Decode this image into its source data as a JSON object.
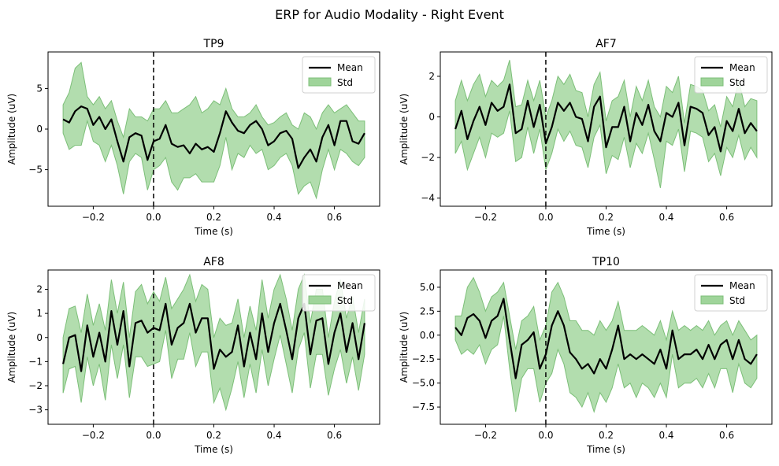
{
  "figure_title": "ERP for Audio Modality - Right Event",
  "colors": {
    "mean": "#000000",
    "std_fill": "#9fd49a",
    "std_edge": "#7cbf78",
    "event_line": "#000000"
  },
  "chart_data": [
    {
      "type": "line",
      "title": "TP9",
      "xlabel": "Time (s)",
      "ylabel": "Amplitude (uV)",
      "xlim": [
        -0.35,
        0.75
      ],
      "ylim": [
        -9.5,
        9.5
      ],
      "xticks": [
        -0.2,
        0.0,
        0.2,
        0.4,
        0.6
      ],
      "xtick_labels": [
        "−0.2",
        "0.0",
        "0.2",
        "0.4",
        "0.6"
      ],
      "yticks": [
        -5,
        0,
        5
      ],
      "ytick_labels": [
        "−5",
        "0",
        "5"
      ],
      "event_x": 0.0,
      "legend": {
        "position": "upper right",
        "entries": [
          "Mean",
          "Std"
        ]
      },
      "x": [
        -0.3,
        -0.28,
        -0.26,
        -0.24,
        -0.22,
        -0.2,
        -0.18,
        -0.16,
        -0.14,
        -0.12,
        -0.1,
        -0.08,
        -0.06,
        -0.04,
        -0.02,
        0.0,
        0.02,
        0.04,
        0.06,
        0.08,
        0.1,
        0.12,
        0.14,
        0.16,
        0.18,
        0.2,
        0.22,
        0.24,
        0.26,
        0.28,
        0.3,
        0.32,
        0.34,
        0.36,
        0.38,
        0.4,
        0.42,
        0.44,
        0.46,
        0.48,
        0.5,
        0.52,
        0.54,
        0.56,
        0.58,
        0.6,
        0.62,
        0.64,
        0.66,
        0.68,
        0.7
      ],
      "series": [
        {
          "name": "Mean",
          "values": [
            1.2,
            0.8,
            2.2,
            2.8,
            2.5,
            0.5,
            1.5,
            0.0,
            1.2,
            -1.5,
            -4.0,
            -1.0,
            -0.5,
            -0.8,
            -3.8,
            -1.5,
            -1.2,
            0.5,
            -1.8,
            -2.2,
            -2.0,
            -3.0,
            -1.8,
            -2.5,
            -2.2,
            -2.8,
            -0.5,
            2.2,
            0.8,
            -0.2,
            -0.5,
            0.5,
            1.0,
            0.0,
            -2.0,
            -1.5,
            -0.5,
            -0.2,
            -1.2,
            -4.8,
            -3.5,
            -2.5,
            -4.0,
            -1.0,
            0.5,
            -2.0,
            1.0,
            1.0,
            -1.5,
            -1.8,
            -0.5
          ]
        },
        {
          "name": "Std",
          "upper": [
            3.0,
            4.5,
            7.5,
            8.2,
            4.0,
            3.0,
            4.0,
            2.5,
            3.5,
            1.0,
            -1.0,
            2.5,
            1.5,
            1.5,
            1.0,
            2.5,
            2.5,
            3.5,
            2.0,
            2.0,
            2.5,
            3.0,
            4.0,
            2.0,
            2.5,
            3.5,
            3.0,
            5.0,
            2.5,
            1.5,
            1.5,
            2.0,
            3.0,
            1.5,
            0.5,
            0.8,
            1.5,
            2.0,
            0.5,
            0.0,
            2.0,
            1.5,
            0.0,
            2.0,
            3.0,
            2.0,
            2.5,
            3.0,
            2.0,
            1.0,
            1.0
          ],
          "lower": [
            -0.5,
            -2.5,
            -2.0,
            -2.0,
            1.0,
            -1.5,
            -2.0,
            -4.0,
            -2.0,
            -4.5,
            -8.0,
            -4.0,
            -3.0,
            -3.5,
            -7.5,
            -5.0,
            -4.5,
            -3.5,
            -6.5,
            -7.5,
            -6.0,
            -6.0,
            -5.5,
            -6.5,
            -6.5,
            -6.5,
            -4.5,
            -1.0,
            -5.0,
            -3.0,
            -3.5,
            -2.0,
            -3.0,
            -2.5,
            -5.0,
            -4.5,
            -3.5,
            -3.0,
            -4.5,
            -8.0,
            -7.0,
            -6.5,
            -8.5,
            -5.0,
            -2.5,
            -5.0,
            -2.5,
            -3.0,
            -4.0,
            -4.5,
            -3.5
          ]
        }
      ]
    },
    {
      "type": "line",
      "title": "AF7",
      "xlabel": "Time (s)",
      "ylabel": "Amplitude (uV)",
      "xlim": [
        -0.35,
        0.75
      ],
      "ylim": [
        -4.4,
        3.2
      ],
      "xticks": [
        -0.2,
        0.0,
        0.2,
        0.4,
        0.6
      ],
      "xtick_labels": [
        "−0.2",
        "0.0",
        "0.2",
        "0.4",
        "0.6"
      ],
      "yticks": [
        -4,
        -2,
        0,
        2
      ],
      "ytick_labels": [
        "−4",
        "−2",
        "0",
        "2"
      ],
      "event_x": 0.0,
      "legend": {
        "position": "upper right",
        "entries": [
          "Mean",
          "Std"
        ]
      },
      "x": [
        -0.3,
        -0.28,
        -0.26,
        -0.24,
        -0.22,
        -0.2,
        -0.18,
        -0.16,
        -0.14,
        -0.12,
        -0.1,
        -0.08,
        -0.06,
        -0.04,
        -0.02,
        0.0,
        0.02,
        0.04,
        0.06,
        0.08,
        0.1,
        0.12,
        0.14,
        0.16,
        0.18,
        0.2,
        0.22,
        0.24,
        0.26,
        0.28,
        0.3,
        0.32,
        0.34,
        0.36,
        0.38,
        0.4,
        0.42,
        0.44,
        0.46,
        0.48,
        0.5,
        0.52,
        0.54,
        0.56,
        0.58,
        0.6,
        0.62,
        0.64,
        0.66,
        0.68,
        0.7
      ],
      "series": [
        {
          "name": "Mean",
          "values": [
            -0.6,
            0.3,
            -1.1,
            -0.2,
            0.5,
            -0.4,
            0.7,
            0.3,
            0.5,
            1.6,
            -0.8,
            -0.6,
            0.8,
            -0.5,
            0.6,
            -1.3,
            -0.5,
            0.7,
            0.3,
            0.7,
            0.0,
            -0.1,
            -1.2,
            0.5,
            1.0,
            -1.5,
            -0.5,
            -0.5,
            0.5,
            -1.2,
            0.2,
            -0.4,
            0.6,
            -0.7,
            -1.2,
            0.2,
            0.0,
            0.7,
            -1.4,
            0.5,
            0.4,
            0.2,
            -0.9,
            -0.5,
            -1.7,
            -0.2,
            -0.7,
            0.4,
            -0.8,
            -0.3,
            -0.7
          ]
        },
        {
          "name": "Std",
          "upper": [
            0.8,
            1.8,
            0.8,
            1.6,
            2.1,
            1.0,
            1.8,
            1.5,
            1.8,
            2.8,
            0.5,
            0.6,
            1.8,
            0.8,
            1.8,
            0.0,
            0.8,
            2.0,
            1.6,
            2.1,
            1.3,
            1.2,
            0.0,
            1.6,
            2.2,
            -0.2,
            0.8,
            1.0,
            1.8,
            0.0,
            1.5,
            0.8,
            1.8,
            0.5,
            0.0,
            1.5,
            1.2,
            2.0,
            -0.3,
            1.6,
            1.5,
            1.3,
            0.3,
            0.6,
            -0.5,
            1.0,
            0.5,
            1.8,
            0.5,
            0.9,
            0.8
          ],
          "lower": [
            -1.8,
            -1.2,
            -2.6,
            -1.8,
            -1.0,
            -2.0,
            -0.8,
            -1.0,
            -0.8,
            0.3,
            -2.2,
            -2.0,
            -0.5,
            -1.8,
            -0.6,
            -2.6,
            -1.8,
            -0.6,
            -1.2,
            -0.7,
            -1.4,
            -1.5,
            -2.5,
            -1.0,
            -0.4,
            -2.8,
            -1.9,
            -2.1,
            -1.0,
            -2.5,
            -1.3,
            -1.8,
            -0.8,
            -2.1,
            -3.5,
            -1.2,
            -1.4,
            -0.6,
            -2.7,
            -0.7,
            -0.8,
            -1.0,
            -2.2,
            -1.8,
            -2.9,
            -1.5,
            -2.0,
            -0.9,
            -2.1,
            -1.5,
            -2.0
          ]
        }
      ]
    },
    {
      "type": "line",
      "title": "AF8",
      "xlabel": "Time (s)",
      "ylabel": "Amplitude (uV)",
      "xlim": [
        -0.35,
        0.75
      ],
      "ylim": [
        -3.6,
        2.8
      ],
      "xticks": [
        -0.2,
        0.0,
        0.2,
        0.4,
        0.6
      ],
      "xtick_labels": [
        "−0.2",
        "0.0",
        "0.2",
        "0.4",
        "0.6"
      ],
      "yticks": [
        -3,
        -2,
        -1,
        0,
        1,
        2
      ],
      "ytick_labels": [
        "−3",
        "−2",
        "−1",
        "0",
        "1",
        "2"
      ],
      "event_x": 0.0,
      "legend": {
        "position": "upper right",
        "entries": [
          "Mean",
          "Std"
        ]
      },
      "x": [
        -0.3,
        -0.28,
        -0.26,
        -0.24,
        -0.22,
        -0.2,
        -0.18,
        -0.16,
        -0.14,
        -0.12,
        -0.1,
        -0.08,
        -0.06,
        -0.04,
        -0.02,
        0.0,
        0.02,
        0.04,
        0.06,
        0.08,
        0.1,
        0.12,
        0.14,
        0.16,
        0.18,
        0.2,
        0.22,
        0.24,
        0.26,
        0.28,
        0.3,
        0.32,
        0.34,
        0.36,
        0.38,
        0.4,
        0.42,
        0.44,
        0.46,
        0.48,
        0.5,
        0.52,
        0.54,
        0.56,
        0.58,
        0.6,
        0.62,
        0.64,
        0.66,
        0.68,
        0.7
      ],
      "series": [
        {
          "name": "Mean",
          "values": [
            -1.1,
            0.0,
            0.1,
            -1.4,
            0.5,
            -0.8,
            0.2,
            -1.0,
            1.1,
            -0.3,
            1.1,
            -1.2,
            0.6,
            0.7,
            0.2,
            0.4,
            0.3,
            1.4,
            -0.3,
            0.4,
            0.6,
            1.4,
            0.2,
            0.8,
            0.8,
            -1.3,
            -0.5,
            -0.8,
            -0.6,
            0.5,
            -1.2,
            0.2,
            -0.9,
            1.0,
            -0.6,
            0.6,
            1.4,
            0.3,
            -0.9,
            0.8,
            1.4,
            -0.7,
            0.7,
            0.8,
            -1.1,
            0.2,
            1.0,
            -0.6,
            0.6,
            -0.9,
            0.6
          ]
        },
        {
          "name": "Std",
          "upper": [
            0.0,
            1.2,
            1.3,
            0.2,
            1.8,
            0.5,
            1.4,
            0.3,
            2.4,
            1.0,
            2.3,
            0.0,
            1.9,
            2.2,
            1.4,
            1.9,
            1.5,
            2.5,
            1.2,
            1.6,
            2.0,
            2.6,
            1.5,
            2.2,
            2.0,
            0.0,
            0.8,
            0.5,
            0.6,
            1.6,
            0.0,
            1.3,
            0.3,
            2.4,
            0.8,
            2.0,
            2.6,
            1.6,
            0.3,
            2.0,
            2.6,
            0.6,
            2.0,
            2.0,
            0.0,
            1.5,
            2.4,
            0.8,
            1.7,
            0.2,
            1.6
          ],
          "lower": [
            -2.3,
            -1.3,
            -1.2,
            -2.7,
            -0.8,
            -2.0,
            -1.1,
            -2.6,
            -0.3,
            -1.7,
            -0.3,
            -2.5,
            -0.8,
            -0.8,
            -1.2,
            -1.1,
            -1.0,
            0.3,
            -1.7,
            -0.9,
            -0.9,
            0.2,
            -1.2,
            -0.6,
            -0.6,
            -2.7,
            -2.1,
            -3.0,
            -2.1,
            -1.0,
            -2.5,
            -1.1,
            -2.3,
            -0.5,
            -2.0,
            -0.9,
            0.1,
            -1.1,
            -2.3,
            -0.5,
            0.2,
            -2.1,
            -0.7,
            -0.7,
            -2.4,
            -1.3,
            -0.5,
            -1.9,
            -0.8,
            -2.2,
            -0.7
          ]
        }
      ]
    },
    {
      "type": "line",
      "title": "TP10",
      "xlabel": "Time (s)",
      "ylabel": "Amplitude (uV)",
      "xlim": [
        -0.35,
        0.75
      ],
      "ylim": [
        -9.3,
        6.8
      ],
      "xticks": [
        -0.2,
        0.0,
        0.2,
        0.4,
        0.6
      ],
      "xtick_labels": [
        "−0.2",
        "0.0",
        "0.2",
        "0.4",
        "0.6"
      ],
      "yticks": [
        -7.5,
        -5.0,
        -2.5,
        0.0,
        2.5,
        5.0
      ],
      "ytick_labels": [
        "−7.5",
        "−5.0",
        "−2.5",
        "0.0",
        "2.5",
        "5.0"
      ],
      "event_x": 0.0,
      "legend": {
        "position": "upper right",
        "entries": [
          "Mean",
          "Std"
        ]
      },
      "x": [
        -0.3,
        -0.28,
        -0.26,
        -0.24,
        -0.22,
        -0.2,
        -0.18,
        -0.16,
        -0.14,
        -0.12,
        -0.1,
        -0.08,
        -0.06,
        -0.04,
        -0.02,
        0.0,
        0.02,
        0.04,
        0.06,
        0.08,
        0.1,
        0.12,
        0.14,
        0.16,
        0.18,
        0.2,
        0.22,
        0.24,
        0.26,
        0.28,
        0.3,
        0.32,
        0.34,
        0.36,
        0.38,
        0.4,
        0.42,
        0.44,
        0.46,
        0.48,
        0.5,
        0.52,
        0.54,
        0.56,
        0.58,
        0.6,
        0.62,
        0.64,
        0.66,
        0.68,
        0.7
      ],
      "series": [
        {
          "name": "Mean",
          "values": [
            0.8,
            0.0,
            1.8,
            2.2,
            1.5,
            -0.3,
            1.5,
            2.0,
            3.8,
            -0.5,
            -4.5,
            -1.0,
            -0.5,
            0.3,
            -3.5,
            -2.0,
            1.0,
            2.5,
            1.0,
            -1.8,
            -2.5,
            -3.5,
            -3.0,
            -4.0,
            -2.5,
            -3.5,
            -1.5,
            1.0,
            -2.5,
            -2.0,
            -2.5,
            -2.0,
            -2.5,
            -3.0,
            -1.5,
            -3.5,
            0.5,
            -2.5,
            -2.0,
            -2.0,
            -1.5,
            -2.5,
            -1.0,
            -2.5,
            -1.0,
            -0.5,
            -2.5,
            -0.5,
            -2.5,
            -3.0,
            -2.0
          ]
        },
        {
          "name": "Std",
          "upper": [
            2.0,
            2.0,
            5.0,
            6.0,
            4.5,
            2.5,
            4.0,
            4.5,
            5.5,
            2.0,
            -1.5,
            1.5,
            2.0,
            3.0,
            -0.5,
            1.0,
            4.5,
            5.5,
            4.0,
            1.5,
            1.5,
            0.5,
            0.5,
            0.0,
            1.5,
            0.5,
            1.5,
            3.5,
            0.5,
            0.5,
            0.5,
            1.0,
            0.5,
            0.0,
            1.5,
            -0.5,
            2.5,
            0.5,
            1.0,
            0.5,
            1.0,
            0.5,
            1.5,
            0.0,
            1.0,
            1.5,
            0.0,
            1.5,
            0.5,
            -0.5,
            0.0
          ],
          "lower": [
            -0.5,
            -2.0,
            -1.5,
            -2.0,
            -1.0,
            -3.0,
            -1.5,
            -1.0,
            2.0,
            -3.5,
            -8.0,
            -4.5,
            -3.5,
            -3.5,
            -7.0,
            -5.0,
            -4.0,
            -1.5,
            -3.0,
            -6.0,
            -6.5,
            -7.5,
            -6.0,
            -8.0,
            -6.0,
            -7.0,
            -5.5,
            -3.0,
            -5.5,
            -5.0,
            -6.5,
            -5.0,
            -5.5,
            -6.5,
            -5.0,
            -6.5,
            -2.0,
            -5.5,
            -5.0,
            -5.0,
            -4.5,
            -5.5,
            -4.0,
            -5.5,
            -3.5,
            -3.5,
            -6.0,
            -3.0,
            -5.0,
            -5.5,
            -4.5
          ]
        }
      ]
    }
  ]
}
